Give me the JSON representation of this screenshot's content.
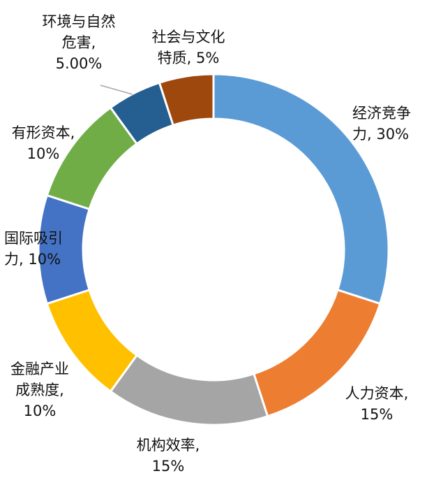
{
  "chart_data": {
    "type": "pie",
    "donut": true,
    "legend": "none",
    "slices": [
      {
        "label_lines": [
          "经济竞争",
          "力, 30%"
        ],
        "value": 30,
        "color": "#5b9bd5"
      },
      {
        "label_lines": [
          "人力资本,",
          "15%"
        ],
        "value": 15,
        "color": "#ed7d31"
      },
      {
        "label_lines": [
          "机构效率,",
          "15%"
        ],
        "value": 15,
        "color": "#a5a5a5"
      },
      {
        "label_lines": [
          "金融产业",
          "成熟度,",
          "10%"
        ],
        "value": 10,
        "color": "#ffc000"
      },
      {
        "label_lines": [
          "国际吸引",
          "力, 10%"
        ],
        "value": 10,
        "color": "#4472c4"
      },
      {
        "label_lines": [
          "有形资本,",
          "10%"
        ],
        "value": 10,
        "color": "#70ad47"
      },
      {
        "label_lines": [
          "环境与自然",
          "危害,",
          "5.00%"
        ],
        "value": 5,
        "color": "#255e91"
      },
      {
        "label_lines": [
          "社会与文化",
          "特质, 5%"
        ],
        "value": 5,
        "color": "#9e480e"
      }
    ]
  }
}
